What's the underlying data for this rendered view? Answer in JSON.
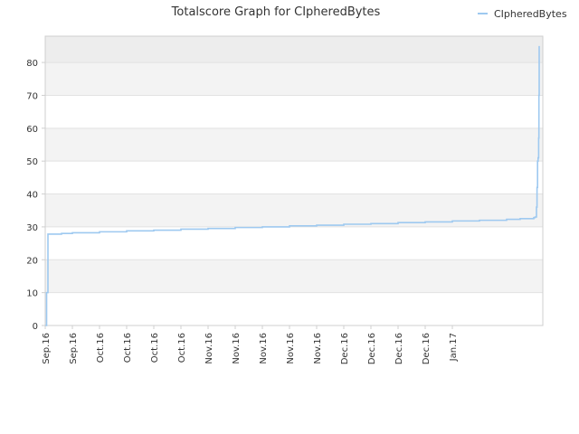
{
  "colors": {
    "line": "#9ec9f0",
    "band_dark": "#ededed",
    "band_light": "#f3f3f3",
    "band_white": "#ffffff",
    "grid": "#e2e2e2",
    "axis": "#cfcfcf",
    "text": "#333333"
  },
  "chart_data": {
    "type": "line",
    "title": "Totalscore Graph for CIpheredBytes",
    "xlabel": "",
    "ylabel": "",
    "ylim": [
      0,
      88
    ],
    "yticks": [
      0,
      10,
      20,
      30,
      40,
      50,
      60,
      70,
      80
    ],
    "xticks": [
      "Sep.16",
      "Sep.16",
      "Oct.16",
      "Oct.16",
      "Oct.16",
      "Oct.16",
      "Nov.16",
      "Nov.16",
      "Nov.16",
      "Nov.16",
      "Nov.16",
      "Dec.16",
      "Dec.16",
      "Dec.16",
      "Dec.16",
      "Jan.17"
    ],
    "legend": {
      "position": "top-right"
    },
    "grid": true,
    "series": [
      {
        "name": "CIpheredBytes",
        "x_index": [
          0,
          0.05,
          0.1,
          0.6,
          1.0,
          2.0,
          3.0,
          4.0,
          5.0,
          6.0,
          7.0,
          8.0,
          9.0,
          10.0,
          11.0,
          12.0,
          13.0,
          14.0,
          15.0,
          16.0,
          17.0,
          17.5,
          18.0,
          18.05,
          18.1,
          18.12,
          18.14,
          18.16,
          18.18,
          18.19,
          18.2
        ],
        "values": [
          0,
          10,
          27.8,
          28.0,
          28.2,
          28.5,
          28.8,
          29.0,
          29.3,
          29.5,
          29.8,
          30.0,
          30.3,
          30.5,
          30.8,
          31.0,
          31.3,
          31.5,
          31.8,
          32.0,
          32.3,
          32.5,
          32.8,
          33.0,
          36,
          42,
          50,
          51,
          57,
          70,
          85
        ]
      }
    ]
  }
}
